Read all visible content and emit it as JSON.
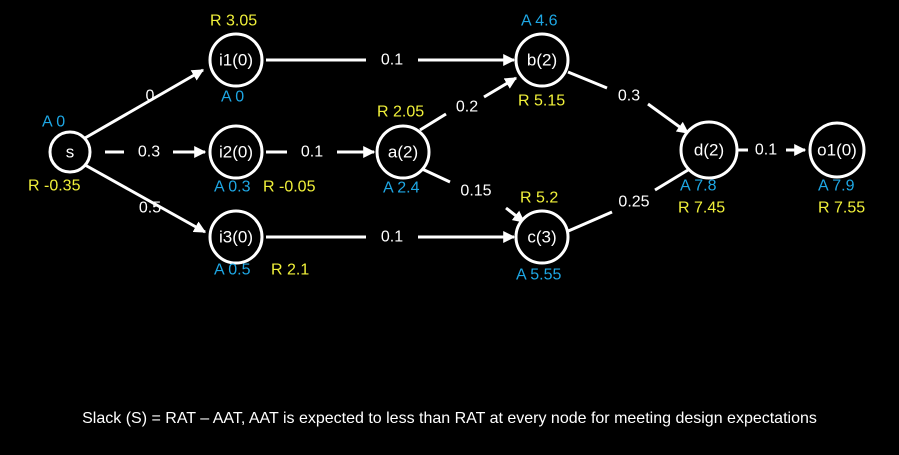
{
  "colors": {
    "background": "#000000",
    "arrival": "#1ea7e4",
    "required": "#f1f13a",
    "foreground": "#ffffff"
  },
  "nodes": {
    "s": {
      "label": "s",
      "arrival": "A 0",
      "required": "R -0.35"
    },
    "i1": {
      "label": "i1(0)",
      "arrival": "A 0",
      "required": "R 3.05"
    },
    "i2": {
      "label": "i2(0)",
      "arrival": "A 0.3",
      "required": "R -0.05"
    },
    "i3": {
      "label": "i3(0)",
      "arrival": "A 0.5",
      "required": "R 2.1"
    },
    "a": {
      "label": "a(2)",
      "arrival": "A 2.4",
      "required": "R 2.05"
    },
    "b": {
      "label": "b(2)",
      "arrival": "A 4.6",
      "required": "R 5.15"
    },
    "c": {
      "label": "c(3)",
      "arrival": "A 5.55",
      "required": "R 5.2"
    },
    "d": {
      "label": "d(2)",
      "arrival": "A 7.8",
      "required": "R 7.45"
    },
    "o1": {
      "label": "o1(0)",
      "arrival": "A 7.9",
      "required": "R 7.55"
    }
  },
  "edges": [
    {
      "from": "s",
      "to": "i1",
      "delay": "0"
    },
    {
      "from": "s",
      "to": "i2",
      "delay": "0.3"
    },
    {
      "from": "s",
      "to": "i3",
      "delay": "0.5"
    },
    {
      "from": "i1",
      "to": "b",
      "delay": "0.1"
    },
    {
      "from": "i2",
      "to": "a",
      "delay": "0.1"
    },
    {
      "from": "i3",
      "to": "c",
      "delay": "0.1"
    },
    {
      "from": "a",
      "to": "b",
      "delay": "0.2"
    },
    {
      "from": "a",
      "to": "c",
      "delay": "0.15"
    },
    {
      "from": "b",
      "to": "d",
      "delay": "0.3"
    },
    {
      "from": "c",
      "to": "d",
      "delay": "0.25"
    },
    {
      "from": "d",
      "to": "o1",
      "delay": "0.1"
    }
  ],
  "caption": "Slack (S) = RAT – AAT, AAT is expected to less than RAT at every node for meeting design expectations"
}
